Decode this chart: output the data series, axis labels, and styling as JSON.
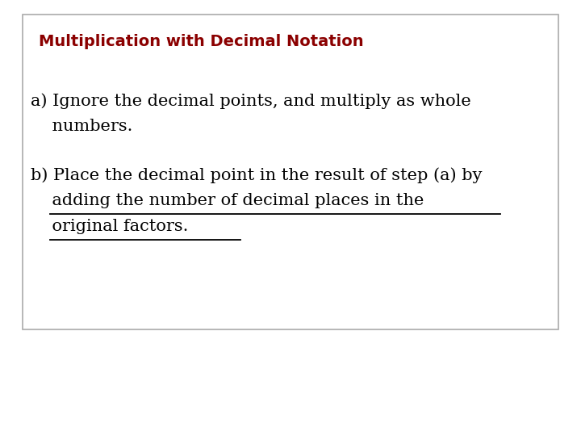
{
  "title": "Multiplication with Decimal Notation",
  "title_color": "#8B0000",
  "title_fontsize": 14,
  "bg_color": "#ffffff",
  "box_edge_color": "#aaaaaa",
  "text_color": "#000000",
  "item_a_line1": "a) Ignore the decimal points, and multiply as whole",
  "item_a_line2": "    numbers.",
  "item_b_line1": "b) Place the decimal point in the result of step (a) by",
  "item_b_ul1": "    adding the number of decimal places in the",
  "item_b_ul2": "    original factors.",
  "body_fontsize": 15,
  "fig_bg": "#ffffff"
}
